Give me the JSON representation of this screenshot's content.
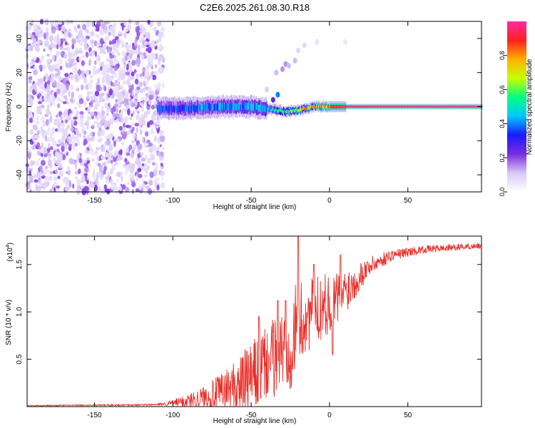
{
  "title": "C2E6.2025.261.08.30.R18",
  "colors": {
    "snr_line": "#e8302a",
    "axis": "#000000",
    "scatter_base": "#7a2be0",
    "colorbar_stops": [
      "#ffffff",
      "#d8c8f6",
      "#7a2be0",
      "#1a1aff",
      "#00c8ff",
      "#00ff80",
      "#c8ff00",
      "#ffb000",
      "#ff2020",
      "#ff2aa0"
    ]
  },
  "chart_data": [
    {
      "type": "heatmap",
      "name": "spectrogram",
      "title": "C2E6.2025.261.08.30.R18",
      "xlabel": "Height of straight line (km)",
      "ylabel": "Frequency (Hz)",
      "xlim": [
        -193,
        97
      ],
      "ylim": [
        -50,
        50
      ],
      "xticks": [
        -150,
        -100,
        -50,
        0,
        50
      ],
      "yticks": [
        -40,
        -20,
        0,
        20,
        40
      ],
      "xtick_labels": [
        "-150",
        "-100",
        "-50",
        "0",
        "50"
      ],
      "ytick_labels": [
        "-40",
        "-20",
        "0",
        "20",
        "40"
      ],
      "noise_region_x": [
        -193,
        -110
      ],
      "ridge": {
        "description": "narrow spectral peak near 0 Hz",
        "x_start": -110,
        "x_end": 97,
        "frequency_hz": 0,
        "spread_hz": [
          4,
          2,
          1
        ],
        "ridge_y_points": [
          {
            "x": -110,
            "y": -1
          },
          {
            "x": -90,
            "y": -1
          },
          {
            "x": -70,
            "y": 0
          },
          {
            "x": -50,
            "y": 0
          },
          {
            "x": -35,
            "y": -2
          },
          {
            "x": -27,
            "y": -3
          },
          {
            "x": -20,
            "y": -2
          },
          {
            "x": -10,
            "y": 0
          },
          {
            "x": 0,
            "y": 0
          },
          {
            "x": 20,
            "y": 0
          },
          {
            "x": 97,
            "y": 0
          }
        ],
        "amplitude_points": [
          {
            "x": -110,
            "a": 0.35
          },
          {
            "x": -40,
            "a": 0.45
          },
          {
            "x": -25,
            "a": 0.6
          },
          {
            "x": -10,
            "a": 0.85
          },
          {
            "x": 10,
            "a": 0.95
          },
          {
            "x": 97,
            "a": 1.0
          }
        ]
      },
      "features": [
        {
          "x": -30,
          "y": 22,
          "a": 0.15
        },
        {
          "x": -28,
          "y": 25,
          "a": 0.15
        },
        {
          "x": -26,
          "y": 24,
          "a": 0.12
        },
        {
          "x": -34,
          "y": 20,
          "a": 0.12
        },
        {
          "x": -33,
          "y": 7,
          "a": 0.4
        },
        {
          "x": -36,
          "y": 4,
          "a": 0.25
        },
        {
          "x": -22,
          "y": 27,
          "a": 0.12
        },
        {
          "x": -20,
          "y": 33,
          "a": 0.08
        },
        {
          "x": -16,
          "y": 36,
          "a": 0.08
        },
        {
          "x": -8,
          "y": 38,
          "a": 0.06
        },
        {
          "x": 10,
          "y": 38,
          "a": 0.05
        },
        {
          "x": -40,
          "y": 10,
          "a": 0.1
        }
      ],
      "colorbar": {
        "label": "Normalized spectral amplitude",
        "range": [
          0,
          1
        ],
        "ticks": [
          0.0,
          0.2,
          0.4,
          0.6,
          0.8
        ],
        "tick_labels": [
          "0.0",
          "0.2",
          "0.4",
          "0.6",
          "0.8"
        ]
      }
    },
    {
      "type": "line",
      "name": "snr",
      "xlabel": "Height of straight line (km)",
      "ylabel": "SNR (10 * v/v)",
      "y_multiplier": "(x10",
      "y_multiplier_exp": "4",
      "y_multiplier_close": ")",
      "xlim": [
        -193,
        97
      ],
      "ylim": [
        0,
        1.8
      ],
      "xticks": [
        -150,
        -100,
        -50,
        0,
        50
      ],
      "yticks": [
        0.5,
        1.0,
        1.5
      ],
      "xtick_labels": [
        "-150",
        "-100",
        "-50",
        "0",
        "50"
      ],
      "ytick_labels": [
        "0.5",
        "1.0",
        "1.5"
      ],
      "envelope": [
        {
          "x": -193,
          "base": 0.01,
          "amp": 0.005
        },
        {
          "x": -110,
          "base": 0.02,
          "amp": 0.01
        },
        {
          "x": -100,
          "base": 0.04,
          "amp": 0.03
        },
        {
          "x": -90,
          "base": 0.06,
          "amp": 0.08
        },
        {
          "x": -80,
          "base": 0.1,
          "amp": 0.12
        },
        {
          "x": -70,
          "base": 0.14,
          "amp": 0.2
        },
        {
          "x": -60,
          "base": 0.2,
          "amp": 0.3
        },
        {
          "x": -50,
          "base": 0.3,
          "amp": 0.38
        },
        {
          "x": -40,
          "base": 0.45,
          "amp": 0.4
        },
        {
          "x": -30,
          "base": 0.6,
          "amp": 0.45
        },
        {
          "x": -22,
          "base": 0.75,
          "amp": 0.55
        },
        {
          "x": -15,
          "base": 0.95,
          "amp": 0.4
        },
        {
          "x": -5,
          "base": 1.05,
          "amp": 0.35
        },
        {
          "x": 5,
          "base": 1.15,
          "amp": 0.3
        },
        {
          "x": 15,
          "base": 1.3,
          "amp": 0.2
        },
        {
          "x": 25,
          "base": 1.48,
          "amp": 0.1
        },
        {
          "x": 40,
          "base": 1.6,
          "amp": 0.06
        },
        {
          "x": 60,
          "base": 1.66,
          "amp": 0.04
        },
        {
          "x": 97,
          "base": 1.7,
          "amp": 0.03
        }
      ],
      "spikes": [
        {
          "x": -45,
          "y": 0.95
        },
        {
          "x": -33,
          "y": 1.12
        },
        {
          "x": -28,
          "y": 1.12
        },
        {
          "x": -20,
          "y": 1.85
        },
        {
          "x": -10,
          "y": 1.5
        },
        {
          "x": 7,
          "y": 1.6
        },
        {
          "x": -5,
          "y": 1.02
        },
        {
          "x": 2,
          "y": 0.55
        }
      ]
    }
  ]
}
